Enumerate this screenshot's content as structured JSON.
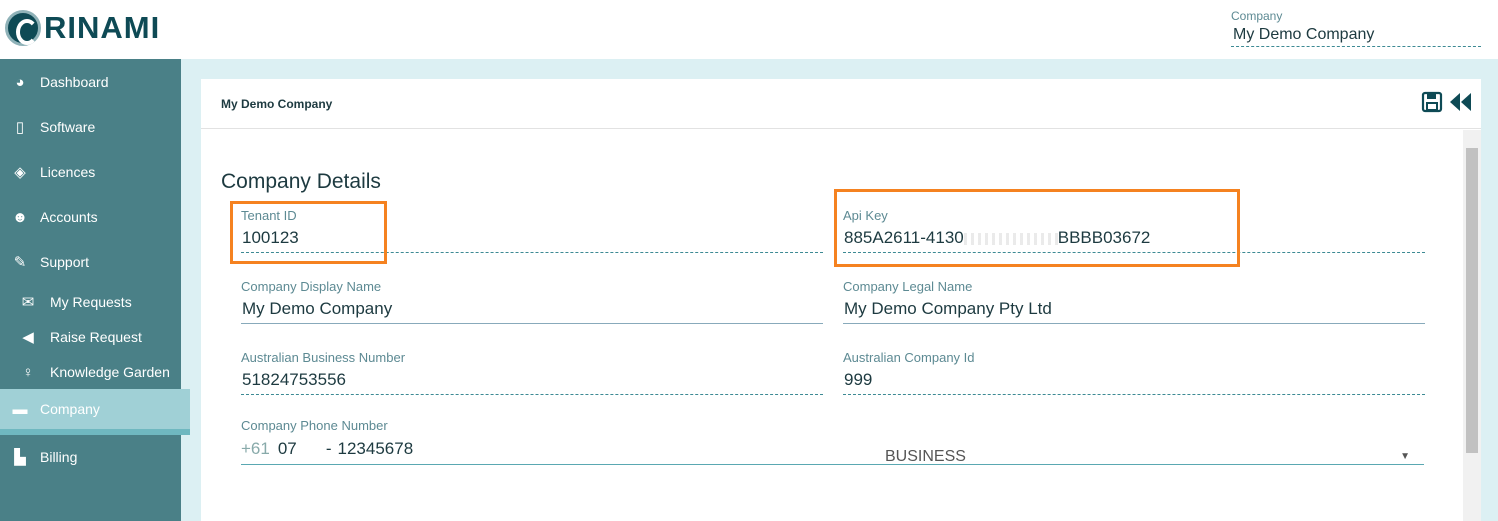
{
  "brand": {
    "name": "RINAMI"
  },
  "header": {
    "company_label": "Company",
    "company_value": "My Demo Company"
  },
  "sidebar": {
    "items": [
      {
        "label": "Dashboard",
        "icon": "dashboard-icon"
      },
      {
        "label": "Software",
        "icon": "file-code-icon"
      },
      {
        "label": "Licences",
        "icon": "ticket-icon"
      },
      {
        "label": "Accounts",
        "icon": "users-icon"
      },
      {
        "label": "Support",
        "icon": "wrench-icon"
      },
      {
        "label": "My Requests",
        "icon": "envelope-icon"
      },
      {
        "label": "Raise Request",
        "icon": "megaphone-icon"
      },
      {
        "label": "Knowledge Garden",
        "icon": "lightbulb-icon"
      },
      {
        "label": "Company",
        "icon": "briefcase-icon",
        "active": true
      },
      {
        "label": "Billing",
        "icon": "bar-chart-icon"
      }
    ]
  },
  "card": {
    "title": "My Demo Company",
    "section_title": "Company Details",
    "fields": {
      "tenant_id": {
        "label": "Tenant ID",
        "value": "100123"
      },
      "api_key": {
        "label": "Api Key",
        "value_start": "885A2611-4130",
        "value_end": "BBBB03672"
      },
      "display_name": {
        "label": "Company Display Name",
        "value": "My Demo Company"
      },
      "legal_name": {
        "label": "Company Legal Name",
        "value": "My Demo Company Pty Ltd"
      },
      "abn": {
        "label": "Australian Business Number",
        "value": "51824753556"
      },
      "acn": {
        "label": "Australian Company Id",
        "value": "999"
      },
      "phone": {
        "label": "Company Phone Number",
        "country_code": "+61",
        "area_code": "07",
        "separator": "-",
        "number": "12345678",
        "type": "BUSINESS"
      }
    }
  },
  "colors": {
    "sidebar": "#4a8087",
    "active": "#a0d0d6",
    "highlight": "#f58220",
    "accent": "#0e4a55"
  }
}
